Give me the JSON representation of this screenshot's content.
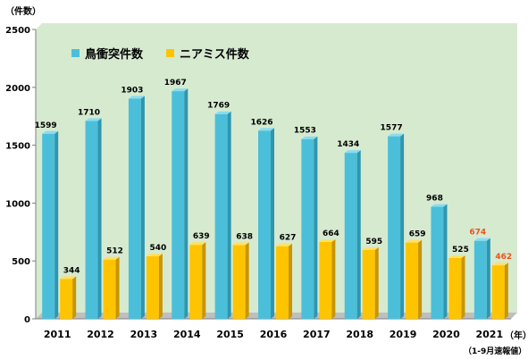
{
  "chart_data": {
    "type": "bar",
    "unit_label": "（件数）",
    "x_unit_label": "（年）",
    "note": "（1-9月速報値）",
    "categories": [
      "2011",
      "2012",
      "2013",
      "2014",
      "2015",
      "2016",
      "2017",
      "2018",
      "2019",
      "2020",
      "2021"
    ],
    "series": [
      {
        "name": "鳥衝突件数",
        "color": "#4bbfd9",
        "side": "#2e96b0",
        "top": "#8bdcef",
        "values": [
          1599,
          1710,
          1903,
          1967,
          1769,
          1626,
          1553,
          1434,
          1577,
          968,
          674
        ]
      },
      {
        "name": "ニアミス件数",
        "color": "#ffc400",
        "side": "#c99500",
        "top": "#ffe066",
        "values": [
          344,
          512,
          540,
          639,
          638,
          627,
          664,
          595,
          659,
          525,
          462
        ]
      }
    ],
    "highlight_category": "2021",
    "highlight_label_color": "#e8541e",
    "ylim": [
      0,
      2500
    ],
    "yticks": [
      0,
      500,
      1000,
      1500,
      2000,
      2500
    ],
    "grid": false,
    "legend_position": "top-left",
    "plot_background": "#d6ead0"
  }
}
